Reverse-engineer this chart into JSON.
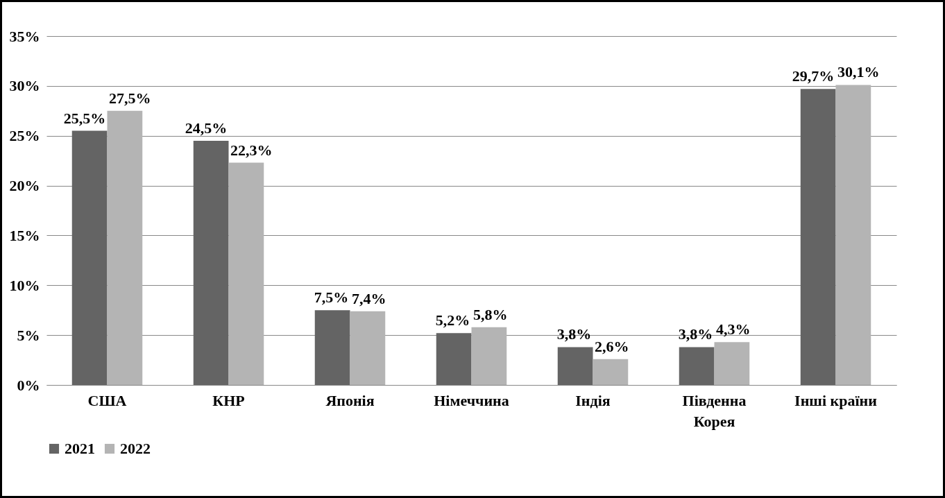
{
  "chart_data": {
    "type": "bar",
    "categories": [
      "США",
      "КНР",
      "Японія",
      "Німеччина",
      "Індія",
      "Південна Корея",
      "Інші країни"
    ],
    "series": [
      {
        "name": "2021",
        "color": "#646464",
        "values": [
          25.5,
          24.5,
          7.5,
          5.2,
          3.8,
          3.8,
          29.7
        ],
        "value_labels": [
          "25,5%",
          "24,5%",
          "7,5%",
          "5,2%",
          "3,8%",
          "3,8%",
          "29,7%"
        ]
      },
      {
        "name": "2022",
        "color": "#b4b4b4",
        "values": [
          27.5,
          22.3,
          7.4,
          5.8,
          2.6,
          4.3,
          30.1
        ],
        "value_labels": [
          "27,5%",
          "22,3%",
          "7,4%",
          "5,8%",
          "2,6%",
          "4,3%",
          "30,1%"
        ]
      }
    ],
    "ylim": [
      0,
      35
    ],
    "yticks": [
      {
        "value": 0,
        "label": "0%"
      },
      {
        "value": 5,
        "label": "5%"
      },
      {
        "value": 10,
        "label": "10%"
      },
      {
        "value": 15,
        "label": "15%"
      },
      {
        "value": 20,
        "label": "20%"
      },
      {
        "value": 25,
        "label": "25%"
      },
      {
        "value": 30,
        "label": "30%"
      },
      {
        "value": 35,
        "label": "35%"
      }
    ],
    "grid": "y",
    "legend": "bottom"
  }
}
